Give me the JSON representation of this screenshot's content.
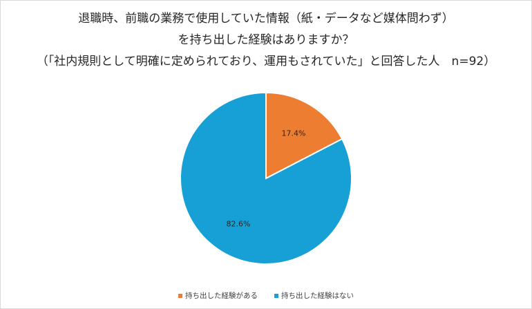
{
  "chart_data": {
    "type": "pie",
    "title_lines": [
      "退職時、前職の業務で使用していた情報（紙・データなど媒体問わず）",
      "を持ち出した経験はありますか？",
      "（「社内規則として明確に定められており、運用もされていた」と回答した人　n=92）"
    ],
    "slices": [
      {
        "label": "持ち出した経験がある",
        "value": 17.4,
        "display": "17.4%",
        "color": "#ED7D31"
      },
      {
        "label": "持ち出した経験はない",
        "value": 82.6,
        "display": "82.6%",
        "color": "#17A0D6"
      }
    ],
    "legend_position": "bottom"
  }
}
